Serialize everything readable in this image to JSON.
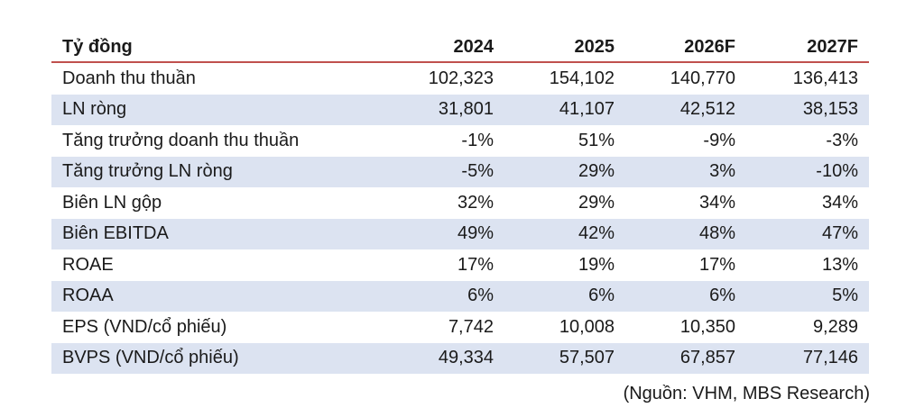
{
  "table": {
    "header": [
      "Tỷ đồng",
      "2024",
      "2025",
      "2026F",
      "2027F"
    ],
    "rows": [
      {
        "label": "Doanh thu thuần",
        "values": [
          "102,323",
          "154,102",
          "140,770",
          "136,413"
        ]
      },
      {
        "label": "LN ròng",
        "values": [
          "31,801",
          "41,107",
          "42,512",
          "38,153"
        ]
      },
      {
        "label": "Tăng trưởng doanh thu thuần",
        "values": [
          "-1%",
          "51%",
          "-9%",
          "-3%"
        ]
      },
      {
        "label": "Tăng trưởng LN ròng",
        "values": [
          "-5%",
          "29%",
          "3%",
          "-10%"
        ]
      },
      {
        "label": "Biên LN gộp",
        "values": [
          "32%",
          "29%",
          "34%",
          "34%"
        ]
      },
      {
        "label": "Biên EBITDA",
        "values": [
          "49%",
          "42%",
          "48%",
          "47%"
        ]
      },
      {
        "label": "ROAE",
        "values": [
          "17%",
          "19%",
          "17%",
          "13%"
        ]
      },
      {
        "label": "ROAA",
        "values": [
          "6%",
          "6%",
          "6%",
          "5%"
        ]
      },
      {
        "label": "EPS (VND/cổ phiếu)",
        "values": [
          "7,742",
          "10,008",
          "10,350",
          "9,289"
        ]
      },
      {
        "label": "BVPS (VND/cổ phiếu)",
        "values": [
          "49,334",
          "57,507",
          "67,857",
          "77,146"
        ]
      }
    ]
  },
  "source": "(Nguồn: VHM, MBS Research)",
  "colors": {
    "header_rule": "#c0504d",
    "shaded_row": "#dce3f1"
  }
}
